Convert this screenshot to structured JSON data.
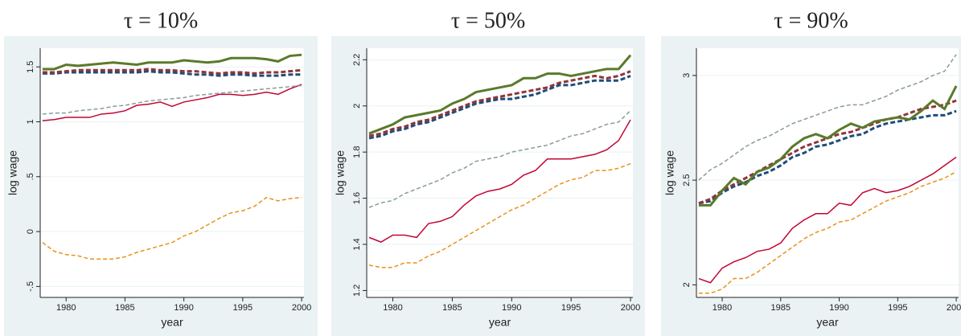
{
  "chart_data": [
    {
      "type": "line",
      "title": "τ = 10%",
      "xlabel": "year",
      "ylabel": "log wage",
      "x": [
        1978,
        1979,
        1980,
        1981,
        1982,
        1983,
        1984,
        1985,
        1986,
        1987,
        1988,
        1989,
        1990,
        1991,
        1992,
        1993,
        1994,
        1995,
        1996,
        1997,
        1998,
        1999,
        2000
      ],
      "xlim": [
        1977.8,
        2000.2
      ],
      "xticks": [
        1980,
        1985,
        1990,
        1995,
        2000
      ],
      "ylim": [
        -0.6,
        1.67
      ],
      "yticks": [
        {
          "value": -0.5,
          "label": "-.5"
        },
        0,
        {
          "value": 0.5,
          "label": ".5"
        },
        1,
        1.5
      ],
      "grid": true,
      "series": [
        {
          "color": "#c10534",
          "style": "solid",
          "width": 1.5,
          "values": [
            1.01,
            1.02,
            1.04,
            1.04,
            1.04,
            1.07,
            1.08,
            1.1,
            1.15,
            1.16,
            1.18,
            1.14,
            1.18,
            1.2,
            1.22,
            1.25,
            1.25,
            1.24,
            1.25,
            1.27,
            1.25,
            1.3,
            1.34
          ]
        },
        {
          "color": "#e8921b",
          "style": "dashed",
          "width": 1.5,
          "values": [
            -0.1,
            -0.18,
            -0.21,
            -0.22,
            -0.25,
            -0.25,
            -0.25,
            -0.23,
            -0.19,
            -0.16,
            -0.13,
            -0.1,
            -0.04,
            0,
            0.06,
            0.12,
            0.17,
            0.19,
            0.23,
            0.31,
            0.28,
            0.3,
            0.31
          ]
        },
        {
          "color": "#8a9a9a",
          "style": "dashed",
          "width": 1.5,
          "values": [
            1.07,
            1.08,
            1.08,
            1.1,
            1.11,
            1.12,
            1.14,
            1.15,
            1.17,
            1.19,
            1.2,
            1.21,
            1.22,
            1.24,
            1.25,
            1.26,
            1.27,
            1.28,
            1.29,
            1.3,
            1.31,
            1.32,
            1.33
          ]
        },
        {
          "color": "#1f4e79",
          "style": "dashed",
          "width": 3,
          "values": [
            1.44,
            1.44,
            1.45,
            1.45,
            1.45,
            1.45,
            1.45,
            1.45,
            1.45,
            1.46,
            1.45,
            1.45,
            1.44,
            1.43,
            1.43,
            1.42,
            1.43,
            1.43,
            1.42,
            1.42,
            1.42,
            1.43,
            1.43
          ]
        },
        {
          "color": "#90353b",
          "style": "dashed",
          "width": 3,
          "values": [
            1.45,
            1.45,
            1.46,
            1.47,
            1.47,
            1.47,
            1.47,
            1.47,
            1.47,
            1.48,
            1.47,
            1.47,
            1.46,
            1.46,
            1.45,
            1.44,
            1.45,
            1.45,
            1.44,
            1.45,
            1.45,
            1.46,
            1.47
          ]
        },
        {
          "color": "#5a7a2a",
          "style": "solid",
          "width": 3,
          "values": [
            1.48,
            1.48,
            1.52,
            1.51,
            1.52,
            1.53,
            1.54,
            1.53,
            1.52,
            1.54,
            1.54,
            1.54,
            1.56,
            1.55,
            1.54,
            1.55,
            1.58,
            1.58,
            1.58,
            1.57,
            1.55,
            1.6,
            1.61
          ]
        }
      ]
    },
    {
      "type": "line",
      "title": "τ = 50%",
      "xlabel": "year",
      "ylabel": "log wage",
      "x": [
        1978,
        1979,
        1980,
        1981,
        1982,
        1983,
        1984,
        1985,
        1986,
        1987,
        1988,
        1989,
        1990,
        1991,
        1992,
        1993,
        1994,
        1995,
        1996,
        1997,
        1998,
        1999,
        2000
      ],
      "xlim": [
        1977.8,
        2000.2
      ],
      "xticks": [
        1980,
        1985,
        1990,
        1995,
        2000
      ],
      "ylim": [
        1.17,
        2.25
      ],
      "yticks": [
        1.2,
        1.4,
        1.6,
        1.8,
        2,
        2.2
      ],
      "grid": true,
      "series": [
        {
          "color": "#c10534",
          "style": "solid",
          "width": 1.5,
          "values": [
            1.43,
            1.41,
            1.44,
            1.44,
            1.43,
            1.49,
            1.5,
            1.52,
            1.57,
            1.61,
            1.63,
            1.64,
            1.66,
            1.7,
            1.72,
            1.77,
            1.77,
            1.77,
            1.78,
            1.79,
            1.81,
            1.85,
            1.94
          ]
        },
        {
          "color": "#e8921b",
          "style": "dashed",
          "width": 1.5,
          "values": [
            1.31,
            1.3,
            1.3,
            1.32,
            1.32,
            1.35,
            1.37,
            1.4,
            1.43,
            1.46,
            1.49,
            1.52,
            1.55,
            1.57,
            1.6,
            1.63,
            1.66,
            1.68,
            1.69,
            1.72,
            1.72,
            1.73,
            1.75
          ]
        },
        {
          "color": "#8a9a9a",
          "style": "dashed",
          "width": 1.5,
          "values": [
            1.56,
            1.58,
            1.59,
            1.62,
            1.64,
            1.66,
            1.68,
            1.71,
            1.73,
            1.76,
            1.77,
            1.78,
            1.8,
            1.81,
            1.82,
            1.83,
            1.85,
            1.87,
            1.88,
            1.9,
            1.92,
            1.93,
            1.98
          ]
        },
        {
          "color": "#1f4e79",
          "style": "dashed",
          "width": 3,
          "values": [
            1.86,
            1.87,
            1.89,
            1.9,
            1.92,
            1.93,
            1.95,
            1.97,
            1.99,
            2.01,
            2.02,
            2.03,
            2.03,
            2.04,
            2.05,
            2.07,
            2.09,
            2.09,
            2.1,
            2.11,
            2.11,
            2.11,
            2.13
          ]
        },
        {
          "color": "#90353b",
          "style": "dashed",
          "width": 3,
          "values": [
            1.87,
            1.88,
            1.9,
            1.91,
            1.93,
            1.94,
            1.96,
            1.98,
            2.0,
            2.02,
            2.03,
            2.04,
            2.05,
            2.06,
            2.07,
            2.08,
            2.1,
            2.11,
            2.12,
            2.13,
            2.12,
            2.13,
            2.15
          ]
        },
        {
          "color": "#5a7a2a",
          "style": "solid",
          "width": 3,
          "values": [
            1.88,
            1.9,
            1.92,
            1.95,
            1.96,
            1.97,
            1.98,
            2.01,
            2.03,
            2.06,
            2.07,
            2.08,
            2.09,
            2.12,
            2.12,
            2.14,
            2.14,
            2.13,
            2.14,
            2.15,
            2.16,
            2.16,
            2.22
          ]
        }
      ]
    },
    {
      "type": "line",
      "title": "τ = 90%",
      "xlabel": "year",
      "ylabel": "log wage",
      "x": [
        1978,
        1979,
        1980,
        1981,
        1982,
        1983,
        1984,
        1985,
        1986,
        1987,
        1988,
        1989,
        1990,
        1991,
        1992,
        1993,
        1994,
        1995,
        1996,
        1997,
        1998,
        1999,
        2000
      ],
      "xlim": [
        1977.8,
        2000.2
      ],
      "xticks": [
        1980,
        1985,
        1990,
        1995,
        2000
      ],
      "ylim": [
        1.94,
        3.13
      ],
      "yticks": [
        2,
        2.5,
        3
      ],
      "grid": true,
      "series": [
        {
          "color": "#c10534",
          "style": "solid",
          "width": 1.5,
          "values": [
            2.03,
            2.01,
            2.08,
            2.11,
            2.13,
            2.16,
            2.17,
            2.2,
            2.27,
            2.31,
            2.34,
            2.34,
            2.39,
            2.38,
            2.44,
            2.46,
            2.44,
            2.45,
            2.47,
            2.5,
            2.53,
            2.57,
            2.61
          ]
        },
        {
          "color": "#e8921b",
          "style": "dashed",
          "width": 1.5,
          "values": [
            1.96,
            1.96,
            1.98,
            2.03,
            2.03,
            2.06,
            2.1,
            2.14,
            2.18,
            2.22,
            2.25,
            2.27,
            2.3,
            2.31,
            2.34,
            2.37,
            2.4,
            2.42,
            2.44,
            2.47,
            2.49,
            2.51,
            2.54
          ]
        },
        {
          "color": "#8a9a9a",
          "style": "dashed",
          "width": 1.5,
          "values": [
            2.5,
            2.55,
            2.58,
            2.62,
            2.66,
            2.69,
            2.71,
            2.74,
            2.77,
            2.79,
            2.81,
            2.83,
            2.85,
            2.86,
            2.86,
            2.88,
            2.9,
            2.93,
            2.95,
            2.97,
            3.0,
            3.02,
            3.1
          ]
        },
        {
          "color": "#1f4e79",
          "style": "dashed",
          "width": 3,
          "values": [
            2.39,
            2.4,
            2.44,
            2.47,
            2.49,
            2.52,
            2.54,
            2.57,
            2.61,
            2.63,
            2.66,
            2.67,
            2.69,
            2.71,
            2.72,
            2.75,
            2.77,
            2.78,
            2.79,
            2.8,
            2.81,
            2.81,
            2.83
          ]
        },
        {
          "color": "#90353b",
          "style": "dashed",
          "width": 3,
          "values": [
            2.39,
            2.41,
            2.45,
            2.48,
            2.51,
            2.54,
            2.57,
            2.6,
            2.63,
            2.66,
            2.68,
            2.7,
            2.72,
            2.73,
            2.75,
            2.77,
            2.79,
            2.8,
            2.82,
            2.84,
            2.85,
            2.86,
            2.88
          ]
        },
        {
          "color": "#5a7a2a",
          "style": "solid",
          "width": 3,
          "values": [
            2.38,
            2.38,
            2.45,
            2.51,
            2.48,
            2.54,
            2.56,
            2.6,
            2.66,
            2.7,
            2.72,
            2.7,
            2.74,
            2.77,
            2.75,
            2.78,
            2.79,
            2.8,
            2.79,
            2.83,
            2.88,
            2.84,
            2.95
          ]
        }
      ]
    }
  ]
}
